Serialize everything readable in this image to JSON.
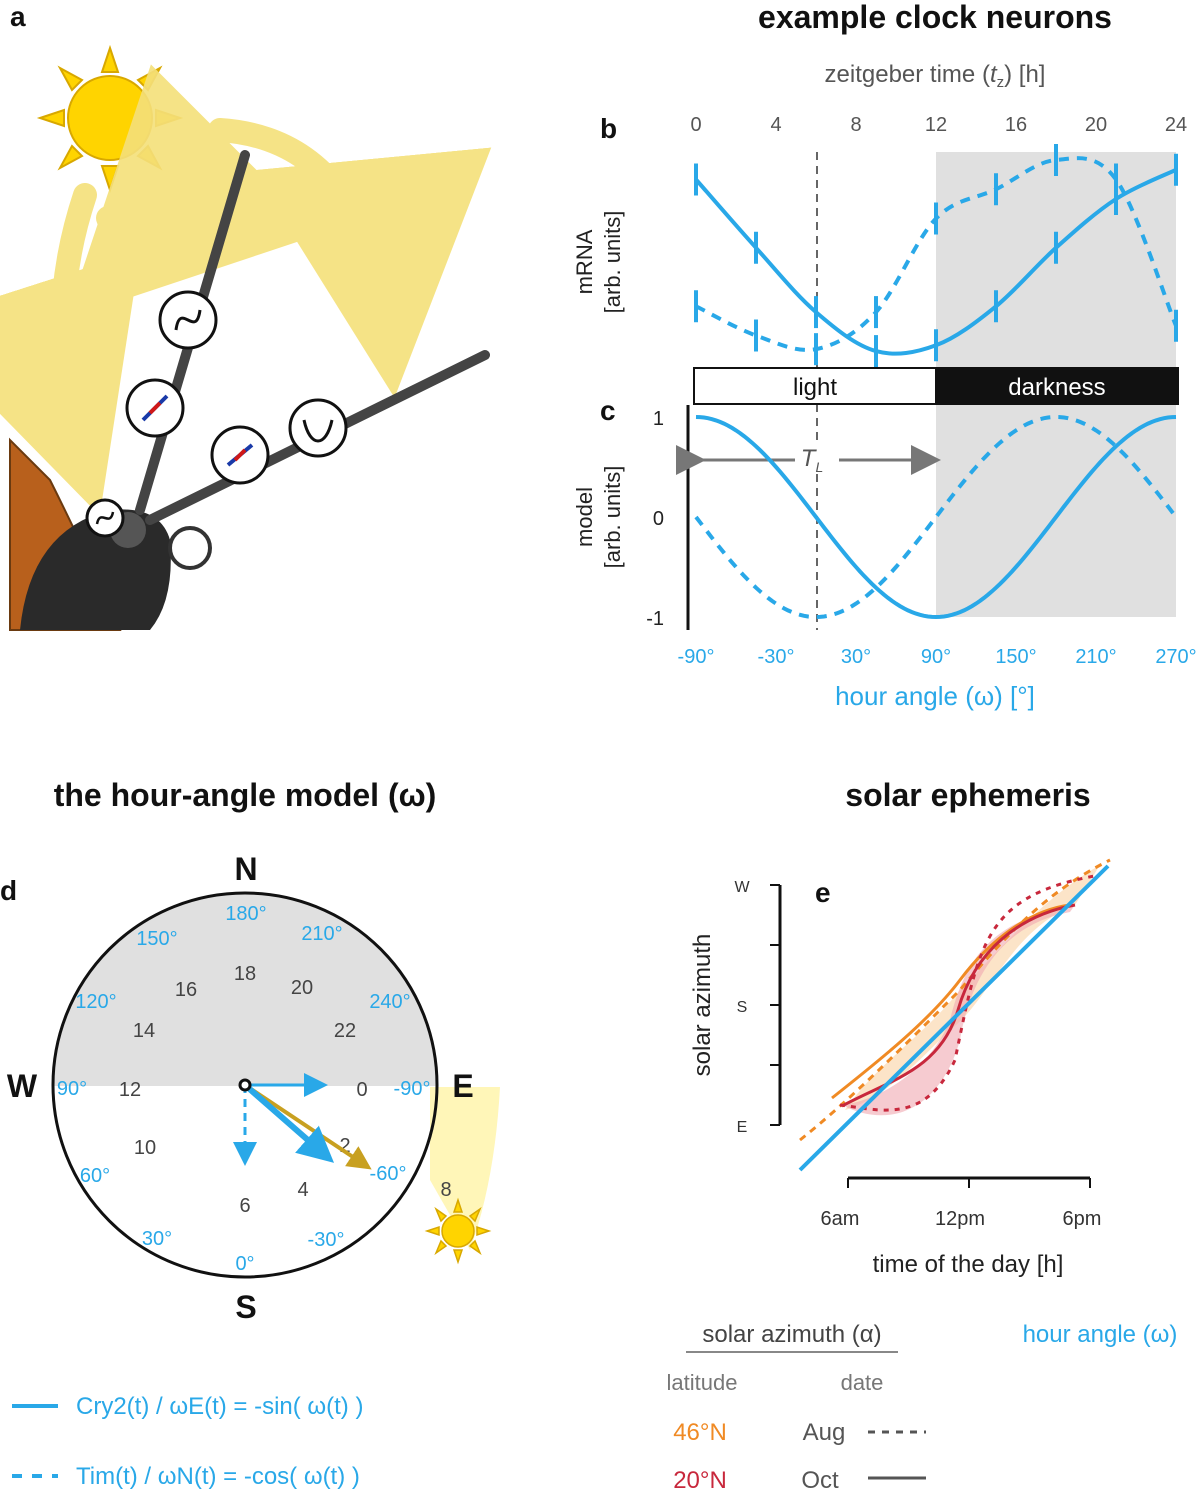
{
  "panel_labels": {
    "a": "a",
    "b": "b",
    "c": "c",
    "d": "d",
    "e": "e"
  },
  "titles": {
    "clock": "example clock neurons",
    "hour_angle_model": "the hour-angle model (ω)",
    "ephemeris": "solar ephemeris"
  },
  "panel_b": {
    "top_axis_title": "zeitgeber time (",
    "top_axis_var": "t",
    "top_axis_sub": "z",
    "top_axis_unit": ") [h]",
    "ylabel_line1": "mRNA",
    "ylabel_line2": "[arb. units]",
    "ticks": [
      "0",
      "4",
      "8",
      "12",
      "16",
      "20",
      "24"
    ]
  },
  "light_bar": {
    "light": "light",
    "darkness": "darkness"
  },
  "panel_c": {
    "ylabel_line1": "model",
    "ylabel_line2": "[arb. units]",
    "yticks": [
      "1",
      "0",
      "-1"
    ],
    "tl_label": "T",
    "tl_sub": "L",
    "bottom_ticks": [
      "-90°",
      "-30°",
      "30°",
      "90°",
      "150°",
      "210°",
      "270°"
    ],
    "xlabel": "hour angle (ω) [°]"
  },
  "panel_d": {
    "cardinals": {
      "n": "N",
      "s": "S",
      "w": "W",
      "e": "E"
    },
    "angles": [
      "180°",
      "150°",
      "210°",
      "120°",
      "240°",
      "90°",
      "-90°",
      "60°",
      "-60°",
      "30°",
      "-30°",
      "0°"
    ],
    "hours": [
      "18",
      "16",
      "20",
      "14",
      "22",
      "12",
      "0",
      "10",
      "2",
      "6",
      "4",
      "8"
    ]
  },
  "legend_left": {
    "line1": "Cry2(t) / ωE(t) = -sin( ω(t) )",
    "line2": "Tim(t)  / ωN(t) = -cos( ω(t) )"
  },
  "panel_e": {
    "ylabel": "solar azimuth",
    "yticks": [
      "W",
      "S",
      "E"
    ],
    "xticks": [
      "6am",
      "12pm",
      "6pm"
    ],
    "xlabel": "time of the day [h]"
  },
  "legend_right": {
    "solar_azimuth": "solar azimuth (α)",
    "hour_angle": "hour angle (ω)",
    "latitude": "latitude",
    "date": "date",
    "lat1": "46°N",
    "lat2": "20°N",
    "date1": "Aug",
    "date2": "Oct"
  },
  "colors": {
    "blue": "#29a8e8",
    "orange": "#f08a24",
    "red": "#c8283c",
    "sun_yellow": "#ffd400",
    "night_gray": "#e0e0e0"
  }
}
